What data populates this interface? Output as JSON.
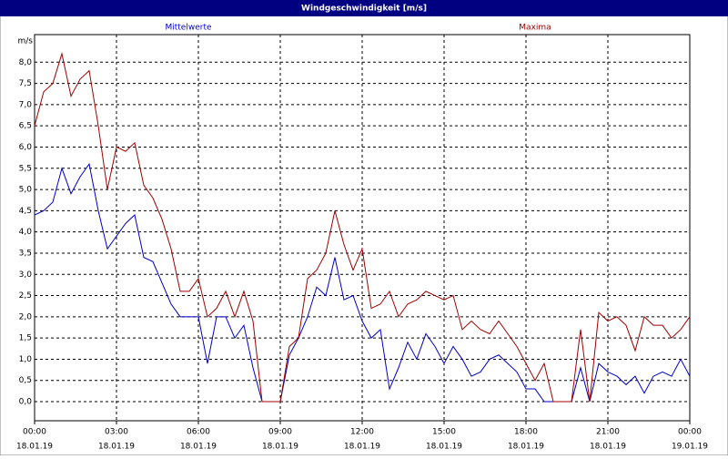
{
  "chart_data": {
    "type": "line",
    "title": "Windgeschwindigkeit [m/s]",
    "ylabel": "m/s",
    "x": [
      0,
      20,
      40,
      60,
      80,
      100,
      120,
      140,
      160,
      180,
      200,
      220,
      240,
      260,
      280,
      300,
      320,
      340,
      360,
      380,
      400,
      420,
      440,
      460,
      480,
      500,
      520,
      540,
      560,
      580,
      600,
      620,
      640,
      660,
      680,
      700,
      720,
      740,
      760,
      780,
      800,
      820,
      840,
      860,
      880,
      900,
      920,
      940,
      960,
      980,
      1000,
      1020,
      1040,
      1060,
      1080,
      1100,
      1120,
      1140,
      1160,
      1180,
      1200,
      1220,
      1240,
      1260,
      1280,
      1300,
      1320,
      1340,
      1360,
      1380,
      1400,
      1420,
      1440
    ],
    "series": [
      {
        "name": "Mittelwerte",
        "color": "#0000c8",
        "values": [
          4.4,
          4.5,
          4.7,
          5.5,
          4.9,
          5.3,
          5.6,
          4.5,
          3.6,
          3.9,
          4.2,
          4.4,
          3.4,
          3.3,
          2.8,
          2.3,
          2.0,
          2.0,
          2.0,
          0.9,
          2.0,
          2.0,
          1.5,
          1.8,
          0.8,
          0.0,
          0.0,
          0.0,
          1.1,
          1.5,
          2.0,
          2.7,
          2.5,
          3.4,
          2.4,
          2.5,
          1.9,
          1.5,
          1.7,
          0.3,
          0.8,
          1.4,
          1.0,
          1.6,
          1.3,
          0.9,
          1.3,
          1.0,
          0.6,
          0.7,
          1.0,
          1.1,
          0.9,
          0.7,
          0.3,
          0.3,
          0.0,
          0.0,
          0.0,
          0.0,
          0.8,
          0.0,
          0.9,
          0.7,
          0.6,
          0.4,
          0.6,
          0.2,
          0.6,
          0.7,
          0.6,
          1.0,
          0.6
        ]
      },
      {
        "name": "Maxima",
        "color": "#a00000",
        "values": [
          6.5,
          7.3,
          7.5,
          8.2,
          7.2,
          7.6,
          7.8,
          6.5,
          5.0,
          6.0,
          5.9,
          6.1,
          5.1,
          4.8,
          4.3,
          3.6,
          2.6,
          2.6,
          2.9,
          2.0,
          2.2,
          2.6,
          2.0,
          2.6,
          1.9,
          0.0,
          0.0,
          0.0,
          1.3,
          1.5,
          2.9,
          3.1,
          3.5,
          4.5,
          3.7,
          3.1,
          3.6,
          2.2,
          2.3,
          2.6,
          2.0,
          2.3,
          2.4,
          2.6,
          2.5,
          2.4,
          2.5,
          1.7,
          1.9,
          1.7,
          1.6,
          1.9,
          1.6,
          1.3,
          0.9,
          0.5,
          0.9,
          0.0,
          0.0,
          0.0,
          1.7,
          0.0,
          2.1,
          1.9,
          2.0,
          1.8,
          1.2,
          2.0,
          1.8,
          1.8,
          1.5,
          1.7,
          2.0
        ]
      }
    ],
    "xlim": [
      0,
      1440
    ],
    "xticks": [
      {
        "value": 0,
        "label": "00:00"
      },
      {
        "value": 180,
        "label": "03:00"
      },
      {
        "value": 360,
        "label": "06:00"
      },
      {
        "value": 540,
        "label": "09:00"
      },
      {
        "value": 720,
        "label": "12:00"
      },
      {
        "value": 900,
        "label": "15:00"
      },
      {
        "value": 1080,
        "label": "18:00"
      },
      {
        "value": 1260,
        "label": "21:00"
      },
      {
        "value": 1440,
        "label": "00:00"
      }
    ],
    "xtick_dates": [
      "18.01.19",
      "18.01.19",
      "18.01.19",
      "18.01.19",
      "18.01.19",
      "18.01.19",
      "18.01.19",
      "18.01.19",
      "19.01.19"
    ],
    "ylim": [
      -0.45,
      8.65
    ],
    "yticks": [
      {
        "value": 0,
        "label": "0,0"
      },
      {
        "value": 0.5,
        "label": "0,5"
      },
      {
        "value": 1,
        "label": "1,0"
      },
      {
        "value": 1.5,
        "label": "1,5"
      },
      {
        "value": 2,
        "label": "2,0"
      },
      {
        "value": 2.5,
        "label": "2,5"
      },
      {
        "value": 3,
        "label": "3,0"
      },
      {
        "value": 3.5,
        "label": "3,5"
      },
      {
        "value": 4,
        "label": "4,0"
      },
      {
        "value": 4.5,
        "label": "4,5"
      },
      {
        "value": 5,
        "label": "5,0"
      },
      {
        "value": 5.5,
        "label": "5,5"
      },
      {
        "value": 6,
        "label": "6,0"
      },
      {
        "value": 6.5,
        "label": "6,5"
      },
      {
        "value": 7,
        "label": "7,0"
      },
      {
        "value": 7.5,
        "label": "7,5"
      },
      {
        "value": 8,
        "label": "8,0"
      }
    ],
    "grid": true
  }
}
